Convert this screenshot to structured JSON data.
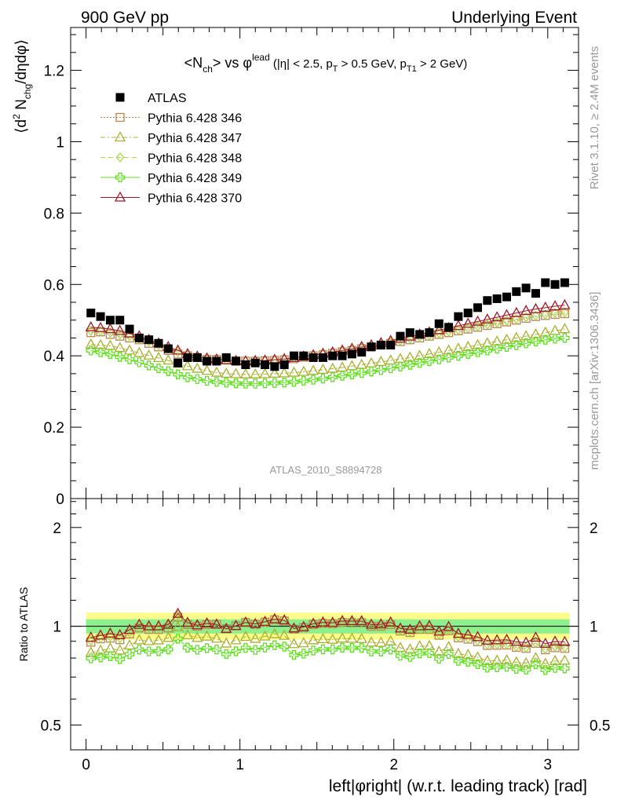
{
  "header": {
    "left": "900 GeV pp",
    "right": "Underlying Event"
  },
  "side_text": {
    "rivet": "Rivet 3.1.10, ≥ 2.4M events",
    "mcplots": "mcplots.cern.ch [arXiv:1306.3436]"
  },
  "main_plot": {
    "title_main": "<N",
    "title_sub_ch": "ch",
    "title_vs": "> vs φ",
    "title_sup_lead": "lead",
    "title_cuts_1": " (|η| < 2.5, p",
    "title_sub_T": "T",
    "title_cuts_2": " > 0.5 GeV, p",
    "title_sub_T1": "T1",
    "title_cuts_3": " > 2 GeV)",
    "ylabel_1": "⟨d",
    "ylabel_sup2": "2",
    "ylabel_2": " N",
    "ylabel_sub": "chg",
    "ylabel_3": "/dηdφ⟩",
    "analysis_tag": "ATLAS_2010_S8894728",
    "yticks": [
      "0",
      "0.2",
      "0.4",
      "0.6",
      "0.8",
      "1",
      "1.2"
    ]
  },
  "ratio_plot": {
    "ylabel": "Ratio to ATLAS",
    "yticks": [
      "0.5",
      "1",
      "2"
    ]
  },
  "xaxis": {
    "label": "left|φright| (w.r.t. leading track) [rad]",
    "ticks": [
      "0",
      "1",
      "2",
      "3"
    ]
  },
  "legend": [
    {
      "label": "ATLAS",
      "color": "#000000",
      "marker": "square-filled",
      "line": "none"
    },
    {
      "label": "Pythia 6.428 346",
      "color": "#b8864e",
      "marker": "square-open",
      "line": "dotted"
    },
    {
      "label": "Pythia 6.428 347",
      "color": "#a8b030",
      "marker": "triangle-open",
      "line": "dashdot"
    },
    {
      "label": "Pythia 6.428 348",
      "color": "#a8d848",
      "marker": "diamond-open",
      "line": "dashed"
    },
    {
      "label": "Pythia 6.428 349",
      "color": "#60e020",
      "marker": "cross-open",
      "line": "solid"
    },
    {
      "label": "Pythia 6.428 370",
      "color": "#a01828",
      "marker": "triangle-open",
      "line": "solid"
    }
  ],
  "chart_data": {
    "type": "scatter",
    "xlabel": "left|φright| (w.r.t. leading track) [rad]",
    "ylabel": "⟨d2 Nchg/dηdφ⟩",
    "xlim": [
      -0.1,
      3.2
    ],
    "ylim": [
      0,
      1.32
    ],
    "ratio_ylim": [
      0.42,
      2.45
    ],
    "ratio_scale": "log",
    "grid": false,
    "legend_position": "top-left",
    "x": [
      0.0314,
      0.0942,
      0.1571,
      0.2199,
      0.2827,
      0.3456,
      0.4084,
      0.4712,
      0.5341,
      0.5969,
      0.6597,
      0.7226,
      0.7854,
      0.8482,
      0.9111,
      0.9739,
      1.0367,
      1.0996,
      1.1624,
      1.2252,
      1.2881,
      1.3509,
      1.4137,
      1.4765,
      1.5394,
      1.6022,
      1.665,
      1.7279,
      1.7907,
      1.8535,
      1.9164,
      1.9792,
      2.042,
      2.1049,
      2.1677,
      2.2305,
      2.2934,
      2.3562,
      2.419,
      2.4819,
      2.5447,
      2.6075,
      2.6704,
      2.7332,
      2.796,
      2.8588,
      2.9217,
      2.9845,
      3.0473,
      3.1102
    ],
    "band_ratio": {
      "stat_low": 0.95,
      "stat_high": 1.05,
      "total_low": 0.91,
      "total_high": 1.1
    },
    "series": [
      {
        "name": "ATLAS",
        "values": [
          0.52,
          0.51,
          0.5,
          0.5,
          0.475,
          0.45,
          0.445,
          0.435,
          0.42,
          0.38,
          0.395,
          0.395,
          0.385,
          0.385,
          0.395,
          0.385,
          0.375,
          0.38,
          0.375,
          0.37,
          0.375,
          0.4,
          0.4,
          0.395,
          0.395,
          0.4,
          0.4,
          0.405,
          0.41,
          0.425,
          0.43,
          0.43,
          0.455,
          0.465,
          0.46,
          0.465,
          0.49,
          0.48,
          0.51,
          0.52,
          0.535,
          0.555,
          0.56,
          0.565,
          0.58,
          0.59,
          0.575,
          0.605,
          0.6,
          0.605
        ]
      },
      {
        "name": "Pythia 6.428 346",
        "values": [
          0.465,
          0.467,
          0.46,
          0.455,
          0.45,
          0.445,
          0.435,
          0.425,
          0.415,
          0.405,
          0.4,
          0.395,
          0.39,
          0.39,
          0.388,
          0.386,
          0.385,
          0.385,
          0.386,
          0.387,
          0.389,
          0.392,
          0.396,
          0.4,
          0.403,
          0.407,
          0.411,
          0.415,
          0.42,
          0.425,
          0.43,
          0.435,
          0.44,
          0.445,
          0.45,
          0.455,
          0.46,
          0.465,
          0.47,
          0.475,
          0.48,
          0.485,
          0.49,
          0.495,
          0.5,
          0.505,
          0.51,
          0.513,
          0.516,
          0.518
        ]
      },
      {
        "name": "Pythia 6.428 347",
        "values": [
          0.432,
          0.43,
          0.428,
          0.422,
          0.415,
          0.408,
          0.401,
          0.394,
          0.387,
          0.378,
          0.371,
          0.364,
          0.358,
          0.353,
          0.35,
          0.349,
          0.348,
          0.348,
          0.349,
          0.35,
          0.351,
          0.353,
          0.355,
          0.358,
          0.361,
          0.364,
          0.367,
          0.371,
          0.375,
          0.379,
          0.383,
          0.387,
          0.391,
          0.395,
          0.4,
          0.405,
          0.41,
          0.415,
          0.42,
          0.425,
          0.43,
          0.435,
          0.44,
          0.445,
          0.45,
          0.455,
          0.46,
          0.465,
          0.47,
          0.475
        ]
      },
      {
        "name": "Pythia 6.428 348",
        "values": [
          0.47,
          0.469,
          0.465,
          0.46,
          0.455,
          0.447,
          0.44,
          0.43,
          0.42,
          0.41,
          0.403,
          0.398,
          0.393,
          0.39,
          0.388,
          0.386,
          0.385,
          0.385,
          0.386,
          0.388,
          0.39,
          0.393,
          0.397,
          0.401,
          0.405,
          0.409,
          0.413,
          0.418,
          0.423,
          0.428,
          0.433,
          0.438,
          0.443,
          0.448,
          0.453,
          0.458,
          0.463,
          0.468,
          0.473,
          0.478,
          0.483,
          0.488,
          0.493,
          0.498,
          0.503,
          0.508,
          0.512,
          0.516,
          0.52,
          0.522
        ]
      },
      {
        "name": "Pythia 6.428 349",
        "values": [
          0.415,
          0.41,
          0.405,
          0.397,
          0.39,
          0.382,
          0.373,
          0.365,
          0.357,
          0.348,
          0.34,
          0.335,
          0.33,
          0.327,
          0.325,
          0.323,
          0.322,
          0.322,
          0.323,
          0.324,
          0.325,
          0.327,
          0.33,
          0.333,
          0.336,
          0.34,
          0.344,
          0.348,
          0.352,
          0.356,
          0.36,
          0.365,
          0.37,
          0.375,
          0.38,
          0.385,
          0.39,
          0.395,
          0.4,
          0.405,
          0.41,
          0.415,
          0.42,
          0.425,
          0.43,
          0.435,
          0.44,
          0.445,
          0.448,
          0.45
        ]
      },
      {
        "name": "Pythia 6.428 370",
        "values": [
          0.48,
          0.478,
          0.475,
          0.47,
          0.463,
          0.455,
          0.445,
          0.435,
          0.425,
          0.415,
          0.405,
          0.398,
          0.393,
          0.39,
          0.388,
          0.386,
          0.385,
          0.386,
          0.387,
          0.389,
          0.391,
          0.394,
          0.398,
          0.402,
          0.406,
          0.41,
          0.415,
          0.42,
          0.425,
          0.43,
          0.436,
          0.442,
          0.448,
          0.454,
          0.46,
          0.466,
          0.472,
          0.478,
          0.484,
          0.49,
          0.496,
          0.502,
          0.508,
          0.514,
          0.52,
          0.526,
          0.531,
          0.535,
          0.539,
          0.542
        ]
      }
    ]
  }
}
